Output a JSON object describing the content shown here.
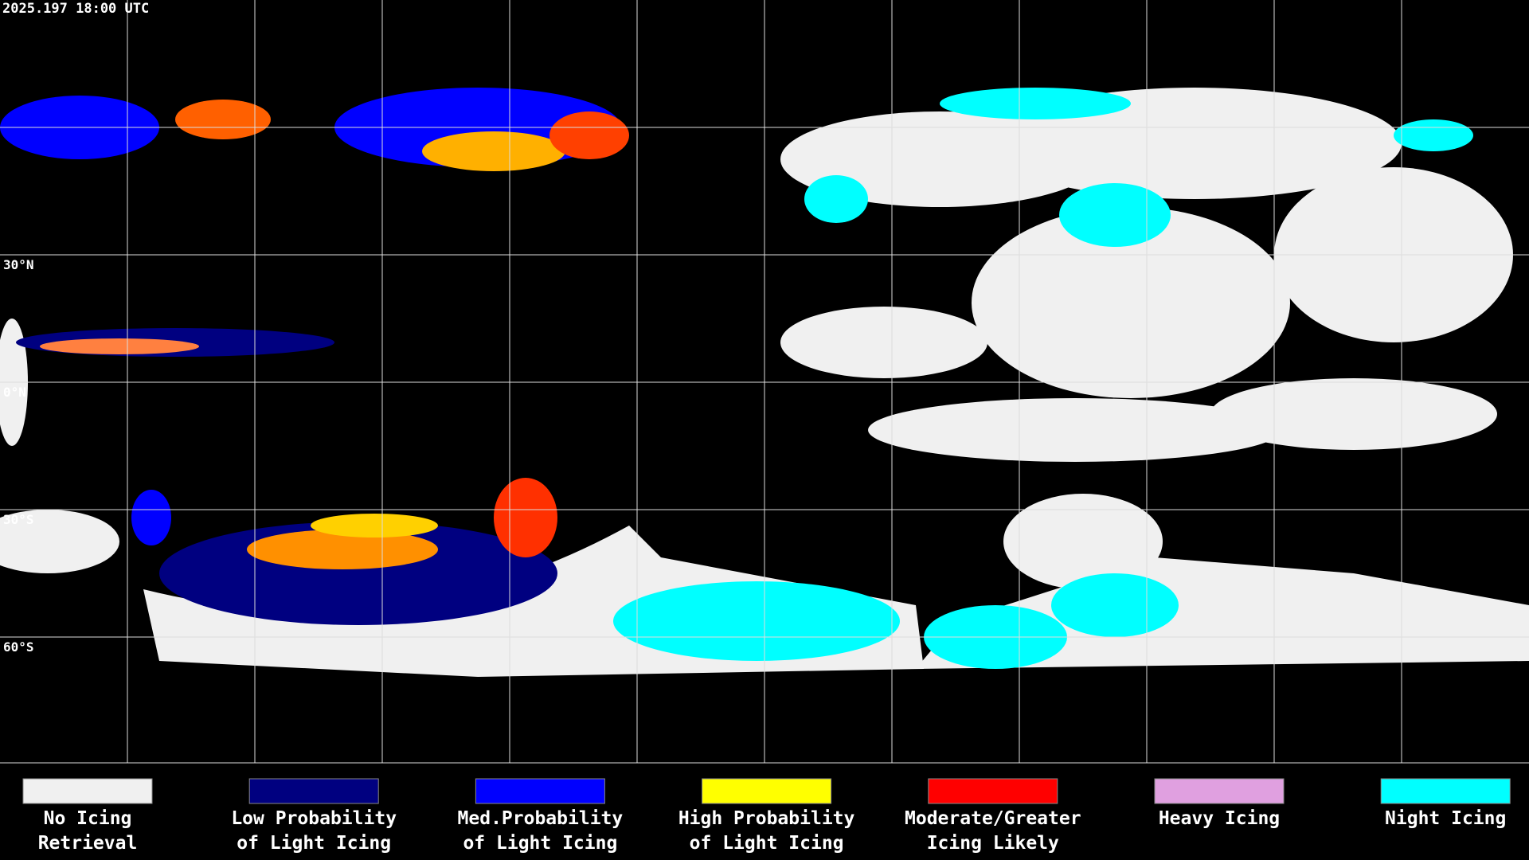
{
  "header": {
    "timestamp": "2025.197 18:00 UTC"
  },
  "map": {
    "latitude_labels": [
      "30°N",
      "0°N",
      "30°S",
      "60°S"
    ]
  },
  "legend": {
    "items": [
      {
        "label": [
          "No Icing",
          "Retrieval"
        ],
        "color": "#f0f0f0"
      },
      {
        "label": [
          "Low Probability",
          "of Light Icing"
        ],
        "color": "#000080"
      },
      {
        "label": [
          "Med.Probability",
          "of Light Icing"
        ],
        "color": "#0000ff"
      },
      {
        "label": [
          "High Probability",
          "of Light Icing"
        ],
        "color": "#ffff00"
      },
      {
        "label": [
          "Moderate/Greater",
          "Icing Likely"
        ],
        "color": "#ff0000"
      },
      {
        "label": [
          "Heavy Icing"
        ],
        "color": "#e0a0e0"
      },
      {
        "label": [
          "Night Icing"
        ],
        "color": "#00ffff"
      }
    ]
  }
}
